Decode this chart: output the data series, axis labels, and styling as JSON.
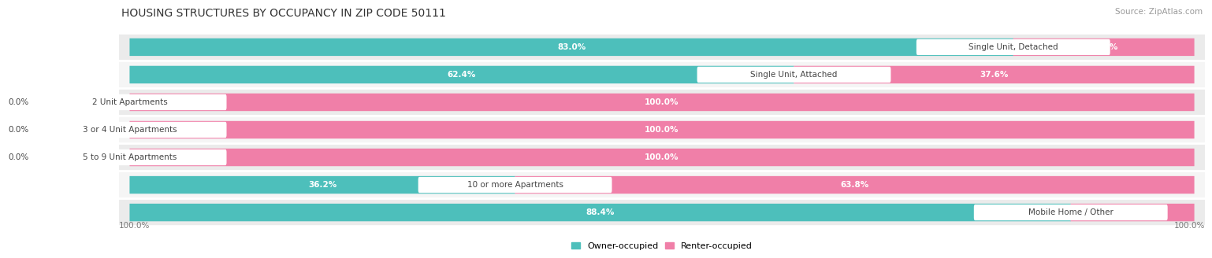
{
  "title": "HOUSING STRUCTURES BY OCCUPANCY IN ZIP CODE 50111",
  "source": "Source: ZipAtlas.com",
  "categories": [
    "Single Unit, Detached",
    "Single Unit, Attached",
    "2 Unit Apartments",
    "3 or 4 Unit Apartments",
    "5 to 9 Unit Apartments",
    "10 or more Apartments",
    "Mobile Home / Other"
  ],
  "owner_pct": [
    83.0,
    62.4,
    0.0,
    0.0,
    0.0,
    36.2,
    88.4
  ],
  "renter_pct": [
    17.0,
    37.6,
    100.0,
    100.0,
    100.0,
    63.8,
    11.6
  ],
  "owner_color": "#4DBFBB",
  "renter_color": "#F07FA8",
  "row_bg_even": "#EBEBEB",
  "row_bg_odd": "#F5F5F5",
  "title_fontsize": 10,
  "label_fontsize": 7.5,
  "pct_fontsize": 7.5,
  "legend_fontsize": 8,
  "source_fontsize": 7.5
}
